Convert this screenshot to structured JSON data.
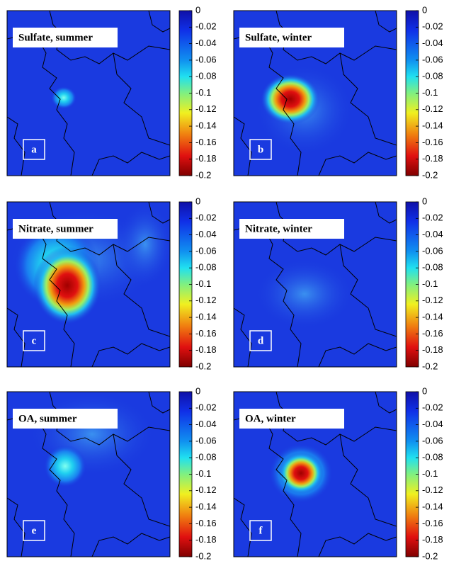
{
  "panels": [
    {
      "title": "Sulfate, summer",
      "label": "a"
    },
    {
      "title": "Sulfate, winter",
      "label": "b"
    },
    {
      "title": "Nitrate, summer",
      "label": "c"
    },
    {
      "title": "Nitrate, winter",
      "label": "d"
    },
    {
      "title": "OA, summer",
      "label": "e"
    },
    {
      "title": "OA, winter",
      "label": "f"
    }
  ],
  "colorbar": {
    "lim": [
      -0.2,
      0
    ],
    "ticks": [
      0,
      -0.02,
      -0.04,
      -0.06,
      -0.08,
      -0.1,
      -0.12,
      -0.14,
      -0.16,
      -0.18,
      -0.2
    ]
  }
}
